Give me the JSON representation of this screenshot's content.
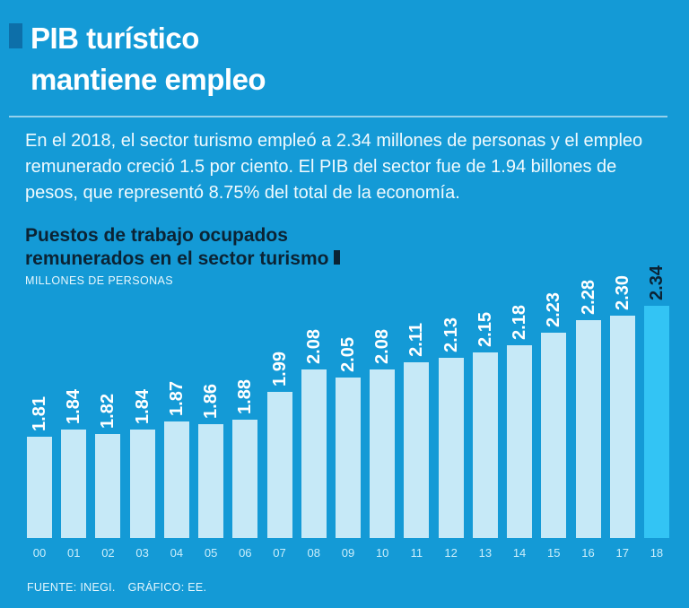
{
  "colors": {
    "background": "#149ad6",
    "bar": "#c6e9f7",
    "bar_highlight": "#33c4f4",
    "dark_text": "#0b2334",
    "accent_square": "#0d6fa9"
  },
  "header": {
    "title_line1": "PIB turístico",
    "title_line2": "mantiene empleo"
  },
  "intro": {
    "text": "En el 2018, el sector turismo empleó a 2.34 millones de personas y el empleo remunerado creció 1.5 por ciento. El PIB del sector fue de 1.94 billones de pesos, que representó 8.75% del total de la economía."
  },
  "chart": {
    "title_line1": "Puestos de trabajo ocupados",
    "title_line2": "remunerados en el sector turismo",
    "unit_label": "MILLONES DE PERSONAS"
  },
  "chart_data": {
    "type": "bar",
    "title": "Puestos de trabajo ocupados remunerados en el sector turismo",
    "subtitle": "MILLONES DE PERSONAS",
    "categories": [
      "00",
      "01",
      "02",
      "03",
      "04",
      "05",
      "06",
      "07",
      "08",
      "09",
      "10",
      "11",
      "12",
      "13",
      "14",
      "15",
      "16",
      "17",
      "18"
    ],
    "values": [
      1.81,
      1.84,
      1.82,
      1.84,
      1.87,
      1.86,
      1.88,
      1.99,
      2.08,
      2.05,
      2.08,
      2.11,
      2.13,
      2.15,
      2.18,
      2.23,
      2.28,
      2.3,
      2.34
    ],
    "highlight_index": 18,
    "ylim": [
      1.4,
      2.4
    ],
    "grid": false,
    "legend": "none",
    "value_labels": "rotated-above-bars"
  },
  "footer": {
    "source": "FUENTE: INEGI.",
    "credit": "GRÁFICO: EE."
  }
}
